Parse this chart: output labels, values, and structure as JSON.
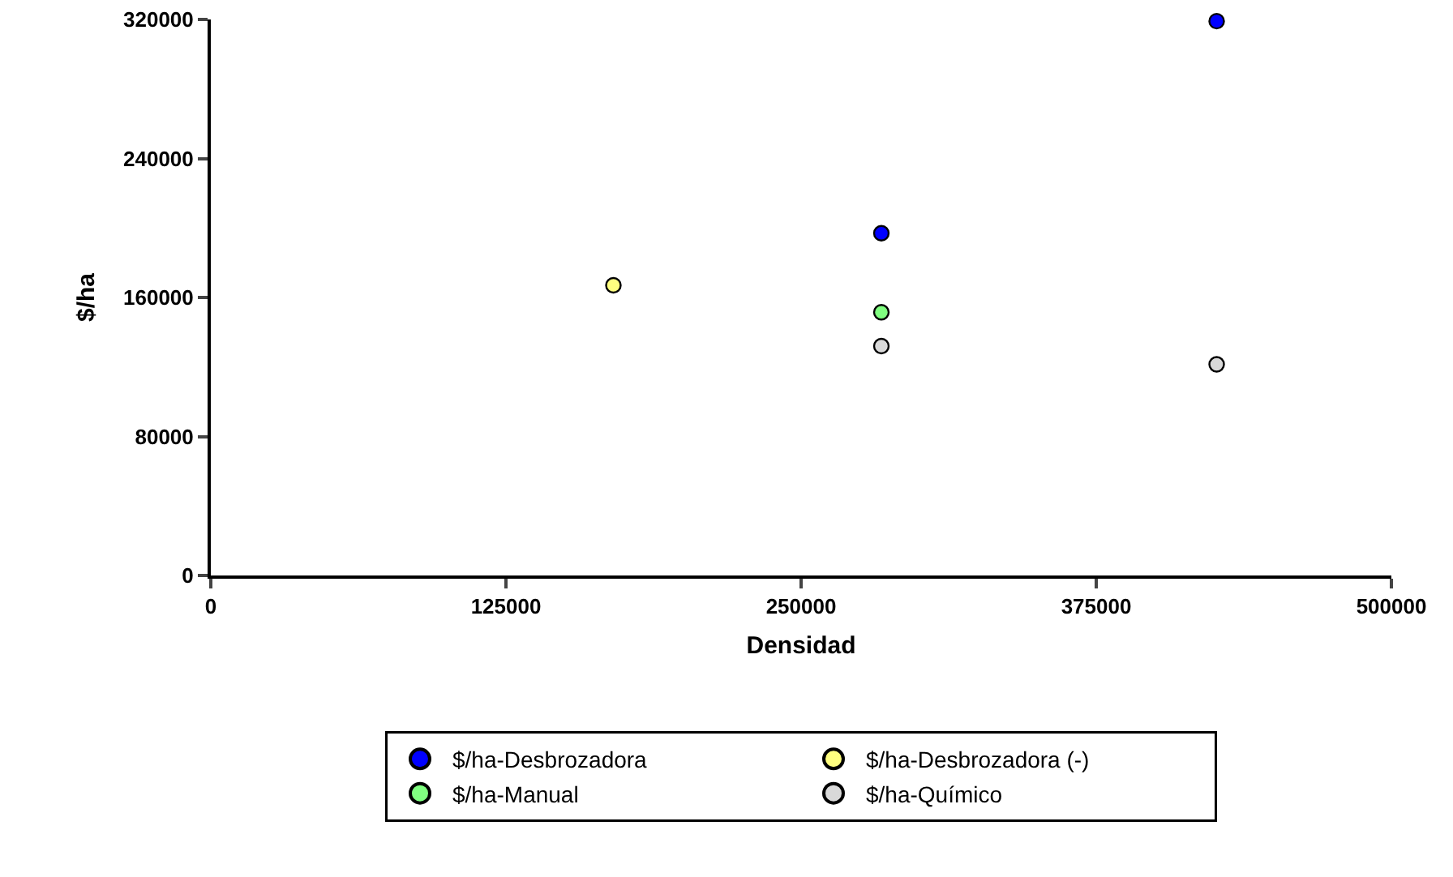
{
  "chart_data": {
    "type": "scatter",
    "xlabel": "Densidad",
    "ylabel": "$/ha",
    "xlim": [
      0,
      500000
    ],
    "ylim": [
      0,
      320000
    ],
    "xticks": [
      0,
      125000,
      250000,
      375000,
      500000
    ],
    "yticks": [
      0,
      80000,
      160000,
      240000,
      320000
    ],
    "grid": false,
    "legend": "bottom",
    "marker": "circle",
    "series": [
      {
        "name": "$/ha-Desbrozadora",
        "color": "#0000ff",
        "x": [
          284000,
          426000
        ],
        "values": [
          197000,
          319000
        ]
      },
      {
        "name": "$/ha-Desbrozadora (-)",
        "color": "#ffff80",
        "x": [
          170500
        ],
        "values": [
          167000
        ]
      },
      {
        "name": "$/ha-Manual",
        "color": "#80ff80",
        "x": [
          284000
        ],
        "values": [
          151500
        ]
      },
      {
        "name": "$/ha-Químico",
        "color": "#d9d9d9",
        "x": [
          284000,
          426000
        ],
        "values": [
          132000,
          121500
        ]
      }
    ]
  }
}
